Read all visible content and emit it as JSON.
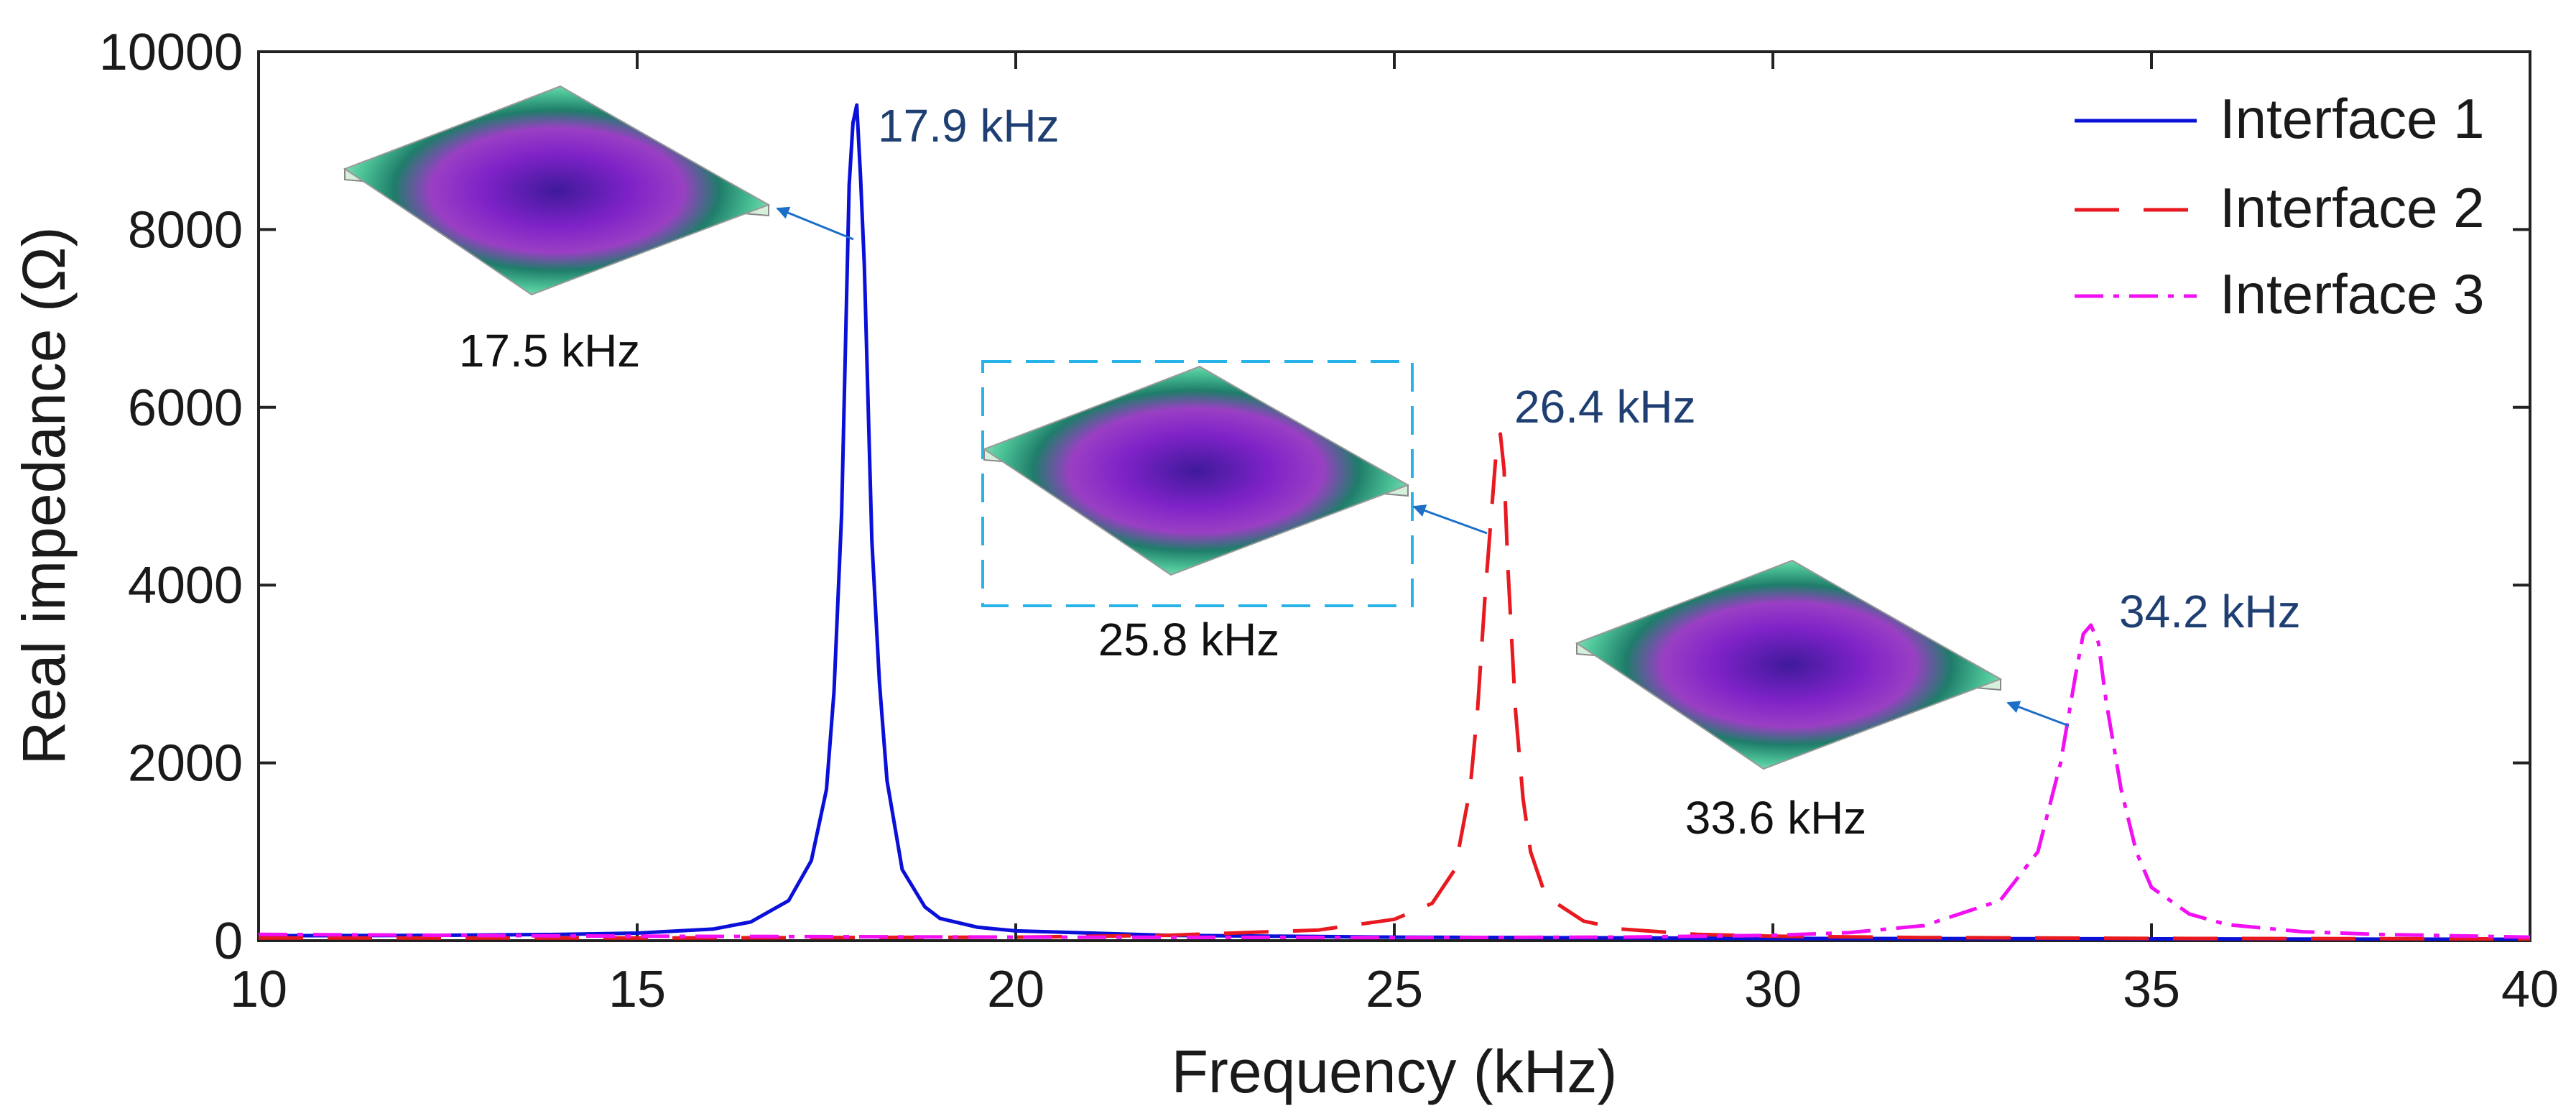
{
  "chart_data": {
    "type": "line",
    "xlabel": "Frequency (kHz)",
    "ylabel": "Real impedance (Ω)",
    "xlim": [
      10,
      40
    ],
    "ylim": [
      0,
      10000
    ],
    "xticks": [
      10,
      15,
      20,
      25,
      30,
      35,
      40
    ],
    "yticks": [
      0,
      2000,
      4000,
      6000,
      8000,
      10000
    ],
    "legend": {
      "position": "top-right"
    },
    "series": [
      {
        "name": "Interface 1",
        "color": "#0a10d8",
        "dash": "solid",
        "peak": {
          "x": 17.9,
          "y": 9400
        },
        "x": [
          10,
          12,
          14,
          15,
          16,
          16.5,
          17,
          17.3,
          17.5,
          17.6,
          17.7,
          17.8,
          17.85,
          17.9,
          17.95,
          18.0,
          18.1,
          18.2,
          18.3,
          18.5,
          18.8,
          19,
          19.5,
          20,
          22,
          25,
          30,
          35,
          40
        ],
        "values": [
          55,
          58,
          70,
          85,
          130,
          210,
          450,
          900,
          1700,
          2800,
          4800,
          8500,
          9200,
          9400,
          8600,
          7600,
          4500,
          2900,
          1800,
          800,
          380,
          250,
          150,
          110,
          60,
          40,
          25,
          20,
          15
        ]
      },
      {
        "name": "Interface 2",
        "color": "#e8191f",
        "dash": "long-dash",
        "peak": {
          "x": 26.4,
          "y": 5700
        },
        "x": [
          10,
          15,
          20,
          22,
          24,
          25,
          25.5,
          25.8,
          26.0,
          26.1,
          26.2,
          26.3,
          26.35,
          26.4,
          26.45,
          26.5,
          26.6,
          26.7,
          26.8,
          27.0,
          27.5,
          28,
          29,
          30,
          32,
          35,
          40
        ],
        "values": [
          30,
          30,
          40,
          60,
          120,
          240,
          420,
          800,
          1700,
          2600,
          3900,
          5000,
          5550,
          5700,
          5300,
          4200,
          2600,
          1600,
          1000,
          500,
          220,
          130,
          70,
          50,
          35,
          25,
          20
        ]
      },
      {
        "name": "Interface 3",
        "color": "#f20ff2",
        "dash": "dash-dot",
        "peak": {
          "x": 34.2,
          "y": 3550
        },
        "x": [
          10,
          15,
          20,
          25,
          28,
          30,
          31,
          32,
          33,
          33.5,
          33.8,
          34.0,
          34.1,
          34.2,
          34.3,
          34.4,
          34.6,
          34.8,
          35,
          35.5,
          36,
          37,
          38,
          40
        ],
        "values": [
          70,
          50,
          40,
          35,
          40,
          60,
          90,
          170,
          450,
          1000,
          2000,
          3000,
          3450,
          3550,
          3350,
          2700,
          1700,
          1000,
          600,
          300,
          180,
          100,
          70,
          40
        ]
      }
    ],
    "annotations": {
      "peak_labels": [
        "17.9 kHz",
        "26.4 kHz",
        "34.2 kHz"
      ],
      "mode_shape_labels": [
        "17.5 kHz",
        "25.8 kHz",
        "33.6 kHz"
      ]
    }
  }
}
